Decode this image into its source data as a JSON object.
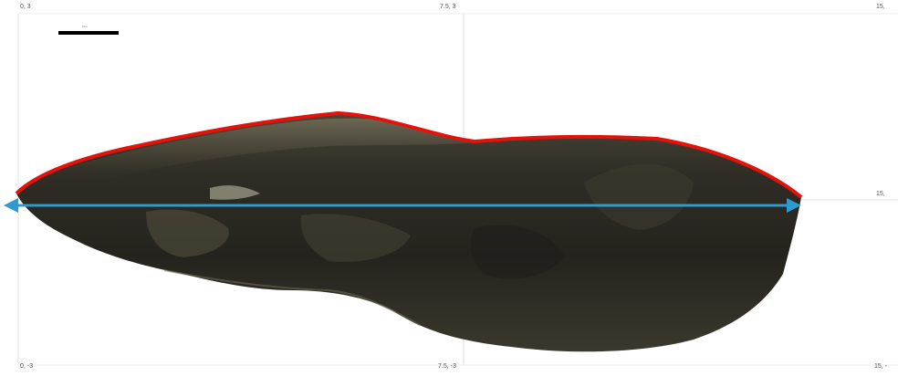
{
  "grid_labels": {
    "top_left": "0, 3",
    "top_mid": "7.5, 3",
    "top_right": "15,",
    "mid_right": "15,",
    "bottom_left": "0, -3",
    "bottom_mid": "7.5, -3",
    "bottom_right": "15, -"
  },
  "scale_bar": {
    "label": "1cm"
  },
  "colors": {
    "artifact_dark": "#2b2a22",
    "artifact_mid": "#3a372c",
    "artifact_highlight": "#6e6a58",
    "outline": "#e3120b",
    "measure_arrow": "#2e9bd0",
    "gridline": "#d8d8d8"
  },
  "icons": {
    "measure": "double-headed-arrow",
    "outline": "edge-trace"
  }
}
